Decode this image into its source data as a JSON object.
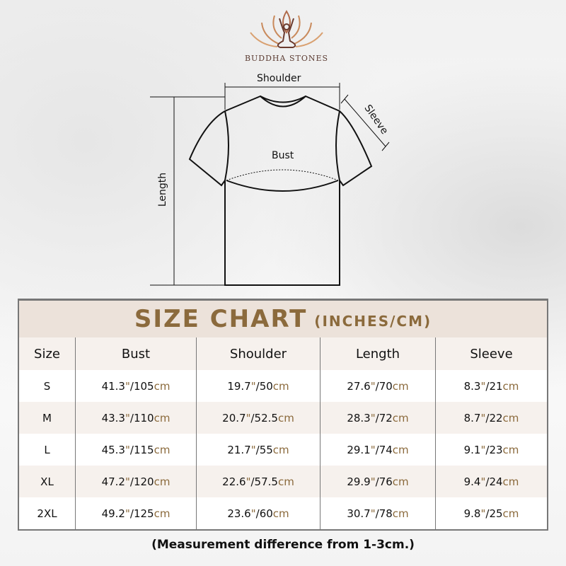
{
  "brand": "BUDDHA STONES",
  "diagram": {
    "shoulder": "Shoulder",
    "sleeve": "Sleeve",
    "bust": "Bust",
    "length": "Length"
  },
  "title": {
    "main": "SIZE CHART",
    "unit": "(INCHES/CM)"
  },
  "accent_color": "#8b6a3c",
  "headers": [
    "Size",
    "Bust",
    "Shoulder",
    "Length",
    "Sleeve"
  ],
  "inch_mark": "\"",
  "cm_unit": "cm",
  "rows": [
    {
      "size": "S",
      "bust": [
        "41.3",
        "105"
      ],
      "shoulder": [
        "19.7",
        "50"
      ],
      "length": [
        "27.6",
        "70"
      ],
      "sleeve": [
        "8.3",
        "21"
      ]
    },
    {
      "size": "M",
      "bust": [
        "43.3",
        "110"
      ],
      "shoulder": [
        "20.7",
        "52.5"
      ],
      "length": [
        "28.3",
        "72"
      ],
      "sleeve": [
        "8.7",
        "22"
      ]
    },
    {
      "size": "L",
      "bust": [
        "45.3",
        "115"
      ],
      "shoulder": [
        "21.7",
        "55"
      ],
      "length": [
        "29.1",
        "74"
      ],
      "sleeve": [
        "9.1",
        "23"
      ]
    },
    {
      "size": "XL",
      "bust": [
        "47.2",
        "120"
      ],
      "shoulder": [
        "22.6",
        "57.5"
      ],
      "length": [
        "29.9",
        "76"
      ],
      "sleeve": [
        "9.4",
        "24"
      ]
    },
    {
      "size": "2XL",
      "bust": [
        "49.2",
        "125"
      ],
      "shoulder": [
        "23.6",
        "60"
      ],
      "length": [
        "30.7",
        "78"
      ],
      "sleeve": [
        "9.8",
        "25"
      ]
    }
  ],
  "note": "(Measurement difference from 1-3cm.)"
}
